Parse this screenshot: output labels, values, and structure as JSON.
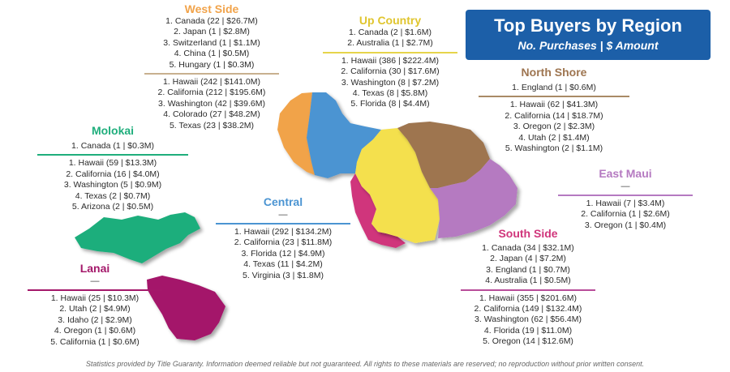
{
  "header": {
    "title": "Top Buyers by Region",
    "subtitle": "No. Purchases | $ Amount",
    "color": "#1c5fa8"
  },
  "regions": {
    "west_side": {
      "title": "West Side",
      "color": "#f1a34a",
      "rule_color": "#c8b08f",
      "international": [
        "1. Canada (22 | $26.7M)",
        "2. Japan (1 | $2.8M)",
        "3. Switzerland (1 | $1.1M)",
        "4. China (1 | $0.5M)",
        "5. Hungary (1 | $0.3M)"
      ],
      "domestic": [
        "1. Hawaii (242 | $141.0M)",
        "2. California (212 | $195.6M)",
        "3. Washington (42 | $39.6M)",
        "4. Colorado (27 | $48.2M)",
        "5. Texas (23 | $38.2M)"
      ]
    },
    "up_country": {
      "title": "Up Country",
      "color": "#f4e04d",
      "rule_color": "#e6d44a",
      "international": [
        "1. Canada (2 | $1.6M)",
        "2. Australia (1 | $2.7M)"
      ],
      "domestic": [
        "1. Hawaii (386 | $222.4M)",
        "2. California (30 | $17.6M)",
        "3. Washington (8 | $7.2M)",
        "4. Texas (8 | $5.8M)",
        "5. Florida (8 | $4.4M)"
      ]
    },
    "north_shore": {
      "title": "North Shore",
      "color": "#9e7550",
      "rule_color": "#a98a66",
      "international": [
        "1. England (1 | $0.6M)"
      ],
      "domestic": [
        "1. Hawaii (62 | $41.3M)",
        "2. California (14 | $18.7M)",
        "3. Oregon (2 | $2.3M)",
        "4. Utah (2 | $1.4M)",
        "5. Washington (2 | $1.1M)"
      ]
    },
    "molokai": {
      "title": "Molokai",
      "color": "#1fae7c",
      "rule_color": "#1fae7c",
      "international": [
        "1. Canada (1 | $0.3M)"
      ],
      "domestic": [
        "1. Hawaii (59 | $13.3M)",
        "2. California (16 | $4.0M)",
        "3. Washington (5 | $0.9M)",
        "4. Texas (2 | $0.7M)",
        "5. Arizona (2 | $0.5M)"
      ]
    },
    "east_maui": {
      "title": "East Maui",
      "color": "#b57ac1",
      "rule_color": "#b57ac1",
      "international_dash": "—",
      "domestic": [
        "1. Hawaii (7 | $3.4M)",
        "2. California (1 | $2.6M)",
        "3. Oregon (1 | $0.4M)"
      ]
    },
    "central": {
      "title": "Central",
      "color": "#4b94d2",
      "rule_color": "#4b94d2",
      "international_dash": "—",
      "domestic": [
        "1. Hawaii (292 | $134.2M)",
        "2. California (23 | $11.8M)",
        "3. Florida (12 | $4.9M)",
        "4. Texas (11 | $4.2M)",
        "5. Virginia (3 | $1.8M)"
      ]
    },
    "south_side": {
      "title": "South Side",
      "color": "#d0357b",
      "rule_color": "#b84d9a",
      "international": [
        "1. Canada (34 | $32.1M)",
        "2. Japan (4 | $7.2M)",
        "3. England (1 | $0.7M)",
        "4. Australia (1 | $0.5M)"
      ],
      "domestic": [
        "1. Hawaii (355 | $201.6M)",
        "2. California (149 | $132.4M)",
        "3. Washington (62 | $56.4M)",
        "4. Florida (19 | $11.0M)",
        "5. Oregon (14 | $12.6M)"
      ]
    },
    "lanai": {
      "title": "Lanai",
      "color": "#a4186a",
      "rule_color": "#a4186a",
      "international_dash": "—",
      "domestic": [
        "1. Hawaii (25 | $10.3M)",
        "2. Utah (2 | $4.9M)",
        "3. Idaho (2 | $2.9M)",
        "4. Oregon (1 | $0.6M)",
        "5. California (1 | $0.6M)"
      ]
    }
  },
  "footer": "Statistics provided by Title Guaranty. Information deemed reliable but not guaranteed. All rights to these materials are reserved; no reproduction without prior written consent."
}
